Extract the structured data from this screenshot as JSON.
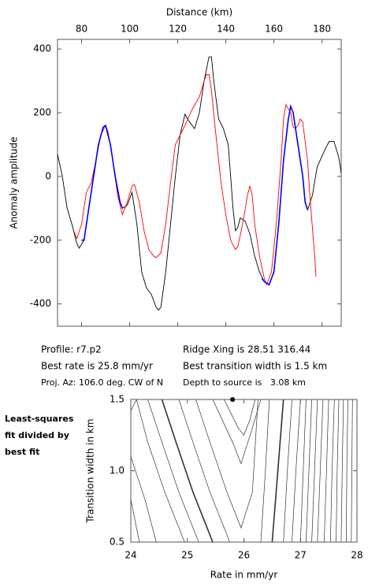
{
  "chart_data": [
    {
      "type": "line",
      "xlabel": "Distance (km)",
      "ylabel": "Anomaly amplitude",
      "xlim": [
        70,
        188
      ],
      "ylim": [
        -470,
        430
      ],
      "xticks": [
        80,
        100,
        120,
        140,
        160,
        180
      ],
      "yticks": [
        -400,
        -200,
        0,
        200,
        400
      ],
      "series": [
        {
          "color": "#000000",
          "x": [
            70,
            72,
            74,
            76,
            78,
            79,
            81,
            83,
            85,
            87,
            89,
            90,
            92,
            94,
            96,
            97,
            99,
            101,
            103,
            105,
            107,
            109,
            111,
            112,
            113,
            115,
            117,
            119,
            121,
            123,
            125,
            127,
            129,
            131,
            133,
            134,
            135,
            137,
            139,
            141,
            142,
            143,
            144,
            145,
            146,
            148,
            150,
            152,
            154,
            156,
            158,
            160,
            162,
            164,
            166,
            167,
            168,
            170,
            172,
            173,
            174,
            176,
            178,
            181,
            183,
            185,
            187,
            188
          ],
          "values": [
            70,
            0,
            -100,
            -150,
            -210,
            -225,
            -200,
            -100,
            0,
            100,
            155,
            160,
            100,
            0,
            -80,
            -100,
            -90,
            -50,
            -150,
            -300,
            -350,
            -370,
            -410,
            -420,
            -410,
            -300,
            -150,
            0,
            130,
            195,
            170,
            150,
            200,
            300,
            375,
            375,
            300,
            180,
            150,
            100,
            0,
            -100,
            -170,
            -160,
            -130,
            -140,
            -180,
            -250,
            -300,
            -330,
            -340,
            -300,
            -150,
            50,
            180,
            220,
            200,
            100,
            0,
            -80,
            -105,
            -60,
            30,
            80,
            110,
            110,
            60,
            10
          ]
        },
        {
          "color": "#ff0000",
          "x": [
            77,
            78,
            80,
            82,
            84,
            86,
            88,
            90,
            91,
            93,
            95,
            97,
            99,
            101,
            102,
            104,
            106,
            108,
            110,
            111,
            113,
            115,
            117,
            119,
            121,
            123,
            126,
            129,
            131,
            132,
            133,
            134,
            136,
            138,
            140,
            142,
            144,
            145,
            147,
            149,
            150,
            151,
            152,
            154,
            156,
            157,
            159,
            161,
            163,
            164,
            165,
            167,
            168,
            169,
            170,
            171,
            172,
            174,
            175,
            176,
            177,
            177.5
          ],
          "values": [
            -175,
            -195,
            -150,
            -50,
            -20,
            50,
            130,
            160,
            140,
            50,
            -60,
            -120,
            -80,
            -30,
            -25,
            -80,
            -170,
            -230,
            -250,
            -255,
            -240,
            -150,
            -20,
            100,
            130,
            160,
            210,
            250,
            300,
            320,
            320,
            270,
            120,
            -20,
            -120,
            -200,
            -230,
            -220,
            -150,
            -60,
            -30,
            -60,
            -150,
            -250,
            -320,
            -340,
            -300,
            -150,
            50,
            180,
            225,
            200,
            155,
            150,
            160,
            180,
            170,
            50,
            -60,
            -160,
            -250,
            -315
          ]
        },
        {
          "color": "#0000ff",
          "x": [
            80,
            81,
            83,
            85,
            87,
            89,
            90,
            92,
            94,
            96,
            97,
            120,
            155,
            156,
            158,
            160,
            162,
            164,
            166,
            167,
            168,
            170,
            172,
            173,
            174
          ],
          "values": [
            -200,
            -200,
            -100,
            0,
            100,
            155,
            160,
            100,
            0,
            -80,
            -100,
            null,
            -320,
            -330,
            -340,
            -300,
            -150,
            50,
            180,
            220,
            200,
            100,
            0,
            -80,
            -105
          ]
        }
      ],
      "annotations": [
        "Profile: r7.p2",
        "Best rate is 25.8 mm/yr",
        "Proj. Az: 106.0 deg. CW of N",
        "Ridge Xing is 28.51 316.44",
        "Best transition width is 1.5 km",
        "Depth to source is   3.08 km"
      ]
    },
    {
      "type": "contour",
      "xlabel": "Rate in mm/yr",
      "ylabel": "Transition width in km",
      "annotation": [
        "Least-squares",
        "fit divided by",
        "best fit"
      ],
      "xlim": [
        24,
        28
      ],
      "ylim": [
        0.5,
        1.5
      ],
      "xticks": [
        24,
        25,
        26,
        27,
        28
      ],
      "yticks": [
        0.5,
        {
          "value": 1,
          "label": "1.0"
        },
        1.5
      ],
      "color": "#333333",
      "best": {
        "x": 25.8,
        "y": 1.5
      },
      "contours": [
        {
          "x": [
            24.1,
            24
          ],
          "y": [
            1.5,
            1.42
          ],
          "bold": false
        },
        {
          "x": [
            24,
            24.15
          ],
          "y": [
            0.8,
            0.5
          ],
          "bold": false
        },
        {
          "x": [
            24,
            24.25,
            24.45
          ],
          "y": [
            1.1,
            0.8,
            0.5
          ],
          "bold": false
        },
        {
          "x": [
            24.1,
            24.3,
            24.6,
            24.95
          ],
          "y": [
            1.5,
            1.2,
            0.85,
            0.5
          ],
          "bold": false
        },
        {
          "x": [
            24.3,
            24.55,
            24.85,
            25.2
          ],
          "y": [
            1.5,
            1.2,
            0.85,
            0.5
          ],
          "bold": false
        },
        {
          "x": [
            24.55,
            24.8,
            25.1,
            25.45
          ],
          "y": [
            1.5,
            1.2,
            0.85,
            0.5
          ],
          "bold": true
        },
        {
          "x": [
            24.85,
            25.1,
            25.4,
            25.75
          ],
          "y": [
            1.5,
            1.2,
            0.85,
            0.5
          ],
          "bold": false
        },
        {
          "x": [
            25.15,
            25.4,
            25.7,
            25.95,
            26.15,
            26.25
          ],
          "y": [
            1.5,
            1.2,
            0.85,
            0.6,
            0.85,
            1.5
          ],
          "bold": false
        },
        {
          "x": [
            25.45,
            25.8,
            25.95,
            26.15,
            26.3
          ],
          "y": [
            1.5,
            1.2,
            1.05,
            1.3,
            1.5
          ],
          "bold": false
        },
        {
          "x": [
            25.65,
            25.9,
            26.0,
            26.1,
            26.2
          ],
          "y": [
            1.5,
            1.3,
            1.25,
            1.35,
            1.5
          ],
          "bold": false
        },
        {
          "x": [
            26.45,
            26.38,
            26.3
          ],
          "y": [
            1.5,
            1.0,
            0.5
          ],
          "bold": false
        },
        {
          "x": [
            26.7,
            26.6,
            26.5
          ],
          "y": [
            1.5,
            1.0,
            0.5
          ],
          "bold": true
        },
        {
          "x": [
            26.85,
            26.77,
            26.7
          ],
          "y": [
            1.5,
            1.0,
            0.5
          ],
          "bold": false
        },
        {
          "x": [
            27.0,
            26.92,
            26.85
          ],
          "y": [
            1.5,
            1.0,
            0.5
          ],
          "bold": false
        },
        {
          "x": [
            27.1,
            27.05,
            27.0
          ],
          "y": [
            1.5,
            1.0,
            0.5
          ],
          "bold": false
        },
        {
          "x": [
            27.2,
            27.15,
            27.1
          ],
          "y": [
            1.5,
            1.0,
            0.5
          ],
          "bold": false
        },
        {
          "x": [
            27.3,
            27.25,
            27.2
          ],
          "y": [
            1.5,
            1.0,
            0.5
          ],
          "bold": false
        },
        {
          "x": [
            27.4,
            27.35,
            27.3
          ],
          "y": [
            1.5,
            1.0,
            0.5
          ],
          "bold": false
        },
        {
          "x": [
            27.5,
            27.46,
            27.42
          ],
          "y": [
            1.5,
            1.0,
            0.5
          ],
          "bold": false
        },
        {
          "x": [
            27.6,
            27.56,
            27.53
          ],
          "y": [
            1.5,
            1.0,
            0.5
          ],
          "bold": false
        },
        {
          "x": [
            27.68,
            27.65,
            27.63
          ],
          "y": [
            1.5,
            1.0,
            0.5
          ],
          "bold": false
        },
        {
          "x": [
            27.76,
            27.74,
            27.72
          ],
          "y": [
            1.5,
            1.0,
            0.5
          ],
          "bold": false
        },
        {
          "x": [
            27.84,
            27.82,
            27.81
          ],
          "y": [
            1.5,
            1.0,
            0.5
          ],
          "bold": false
        },
        {
          "x": [
            27.92,
            27.91,
            27.9
          ],
          "y": [
            1.5,
            1.0,
            0.5
          ],
          "bold": false
        }
      ]
    }
  ]
}
